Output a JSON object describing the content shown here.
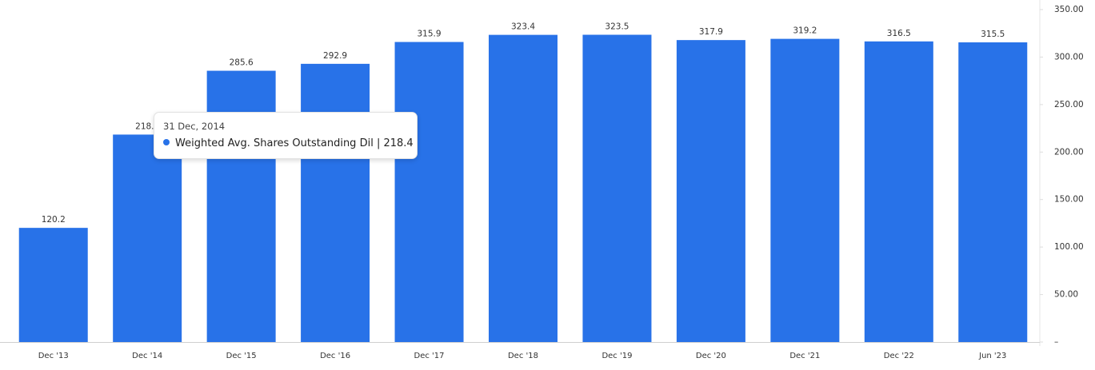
{
  "chart_data": {
    "type": "bar",
    "categories": [
      "Dec '13",
      "Dec '14",
      "Dec '15",
      "Dec '16",
      "Dec '17",
      "Dec '18",
      "Dec '19",
      "Dec '20",
      "Dec '21",
      "Dec '22",
      "Jun '23"
    ],
    "series": [
      {
        "name": "Weighted Avg. Shares Outstanding Dil",
        "color": "#2872e8",
        "values": [
          120.2,
          218.4,
          285.6,
          292.9,
          315.9,
          323.4,
          323.5,
          317.9,
          319.2,
          316.5,
          315.5
        ]
      }
    ],
    "ylim": [
      0,
      350
    ],
    "yticks": [
      {
        "value": 0,
        "label": "–"
      },
      {
        "value": 50,
        "label": "50.00"
      },
      {
        "value": 100,
        "label": "100.00"
      },
      {
        "value": 150,
        "label": "150.00"
      },
      {
        "value": 200,
        "label": "200.00"
      },
      {
        "value": 250,
        "label": "250.00"
      },
      {
        "value": 300,
        "label": "300.00"
      },
      {
        "value": 350,
        "label": "350.00"
      }
    ],
    "axis_side": "right",
    "tooltip": {
      "date": "31 Dec, 2014",
      "separator": "|",
      "index": 1
    }
  }
}
